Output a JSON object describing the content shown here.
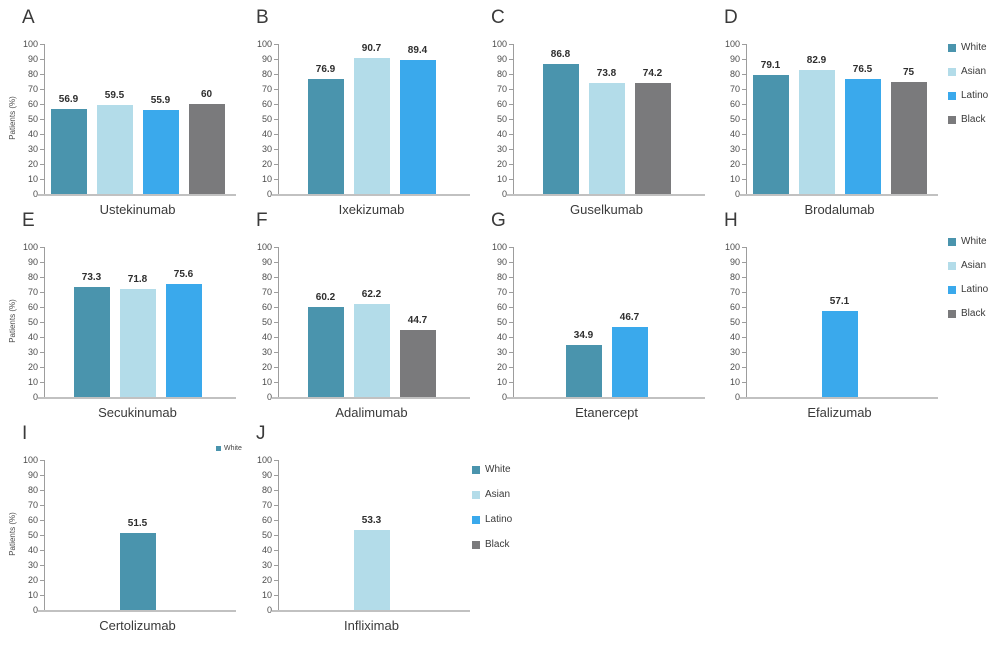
{
  "figure": {
    "ylabel": "Patients (%)",
    "y_ticks": [
      "100",
      "90",
      "80",
      "70",
      "60",
      "50",
      "40",
      "30",
      "20",
      "10",
      "0"
    ]
  },
  "series_colors": {
    "White": "#4a94ad",
    "Asian": "#b3dce9",
    "Latino": "#3aa9ec",
    "Black": "#7a7a7c"
  },
  "legends": [
    {
      "id": "legend-row1",
      "position": "right-of-panel-D",
      "items": [
        "White",
        "Asian",
        "Latino",
        "Black"
      ]
    },
    {
      "id": "legend-row2",
      "position": "right-of-panel-H",
      "items": [
        "White",
        "Asian",
        "Latino",
        "Black"
      ]
    },
    {
      "id": "legend-mini",
      "position": "above-panel-I",
      "items": [
        "White"
      ]
    },
    {
      "id": "legend-row3",
      "position": "right-of-panel-J",
      "items": [
        "White",
        "Asian",
        "Latino",
        "Black"
      ]
    }
  ],
  "chart_data": [
    {
      "type": "bar",
      "panel": "A",
      "xlabel": "Ustekinumab",
      "ylabel": "Patients (%)",
      "ylim": [
        0,
        100
      ],
      "grid": false,
      "bars": [
        {
          "series": "White",
          "value": 56.9,
          "label": "56.9"
        },
        {
          "series": "Asian",
          "value": 59.5,
          "label": "59.5"
        },
        {
          "series": "Latino",
          "value": 55.9,
          "label": "55.9"
        },
        {
          "series": "Black",
          "value": 60,
          "label": "60"
        }
      ]
    },
    {
      "type": "bar",
      "panel": "B",
      "xlabel": "Ixekizumab",
      "ylabel": "",
      "ylim": [
        0,
        100
      ],
      "grid": false,
      "bars": [
        {
          "series": "White",
          "value": 76.9,
          "label": "76.9"
        },
        {
          "series": "Asian",
          "value": 90.7,
          "label": "90.7"
        },
        {
          "series": "Latino",
          "value": 89.4,
          "label": "89.4"
        }
      ]
    },
    {
      "type": "bar",
      "panel": "C",
      "xlabel": "Guselkumab",
      "ylabel": "",
      "ylim": [
        0,
        100
      ],
      "grid": false,
      "bars": [
        {
          "series": "White",
          "value": 86.8,
          "label": "86.8"
        },
        {
          "series": "Asian",
          "value": 73.8,
          "label": "73.8"
        },
        {
          "series": "Black",
          "value": 74.2,
          "label": "74.2"
        }
      ]
    },
    {
      "type": "bar",
      "panel": "D",
      "xlabel": "Brodalumab",
      "ylabel": "",
      "ylim": [
        0,
        100
      ],
      "grid": false,
      "bars": [
        {
          "series": "White",
          "value": 79.1,
          "label": "79.1"
        },
        {
          "series": "Asian",
          "value": 82.9,
          "label": "82.9"
        },
        {
          "series": "Latino",
          "value": 76.5,
          "label": "76.5"
        },
        {
          "series": "Black",
          "value": 75,
          "label": "75"
        }
      ]
    },
    {
      "type": "bar",
      "panel": "E",
      "xlabel": "Secukinumab",
      "ylabel": "Patients (%)",
      "ylim": [
        0,
        100
      ],
      "grid": false,
      "bars": [
        {
          "series": "White",
          "value": 73.3,
          "label": "73.3"
        },
        {
          "series": "Asian",
          "value": 71.8,
          "label": "71.8"
        },
        {
          "series": "Latino",
          "value": 75.6,
          "label": "75.6"
        }
      ]
    },
    {
      "type": "bar",
      "panel": "F",
      "xlabel": "Adalimumab",
      "ylabel": "",
      "ylim": [
        0,
        100
      ],
      "grid": false,
      "bars": [
        {
          "series": "White",
          "value": 60.2,
          "label": "60.2"
        },
        {
          "series": "Asian",
          "value": 62.2,
          "label": "62.2"
        },
        {
          "series": "Black",
          "value": 44.7,
          "label": "44.7"
        }
      ]
    },
    {
      "type": "bar",
      "panel": "G",
      "xlabel": "Etanercept",
      "ylabel": "",
      "ylim": [
        0,
        100
      ],
      "grid": false,
      "bars": [
        {
          "series": "White",
          "value": 34.9,
          "label": "34.9"
        },
        {
          "series": "Latino",
          "value": 46.7,
          "label": "46.7"
        }
      ]
    },
    {
      "type": "bar",
      "panel": "H",
      "xlabel": "Efalizumab",
      "ylabel": "",
      "ylim": [
        0,
        100
      ],
      "grid": false,
      "bars": [
        {
          "series": "Latino",
          "value": 57.1,
          "label": "57.1"
        }
      ]
    },
    {
      "type": "bar",
      "panel": "I",
      "xlabel": "Certolizumab",
      "ylabel": "Patients (%)",
      "ylim": [
        0,
        100
      ],
      "grid": false,
      "bars": [
        {
          "series": "White",
          "value": 51.5,
          "label": "51.5"
        }
      ]
    },
    {
      "type": "bar",
      "panel": "J",
      "xlabel": "Infliximab",
      "ylabel": "",
      "ylim": [
        0,
        100
      ],
      "grid": false,
      "bars": [
        {
          "series": "Asian",
          "value": 53.3,
          "label": "53.3"
        }
      ]
    }
  ]
}
